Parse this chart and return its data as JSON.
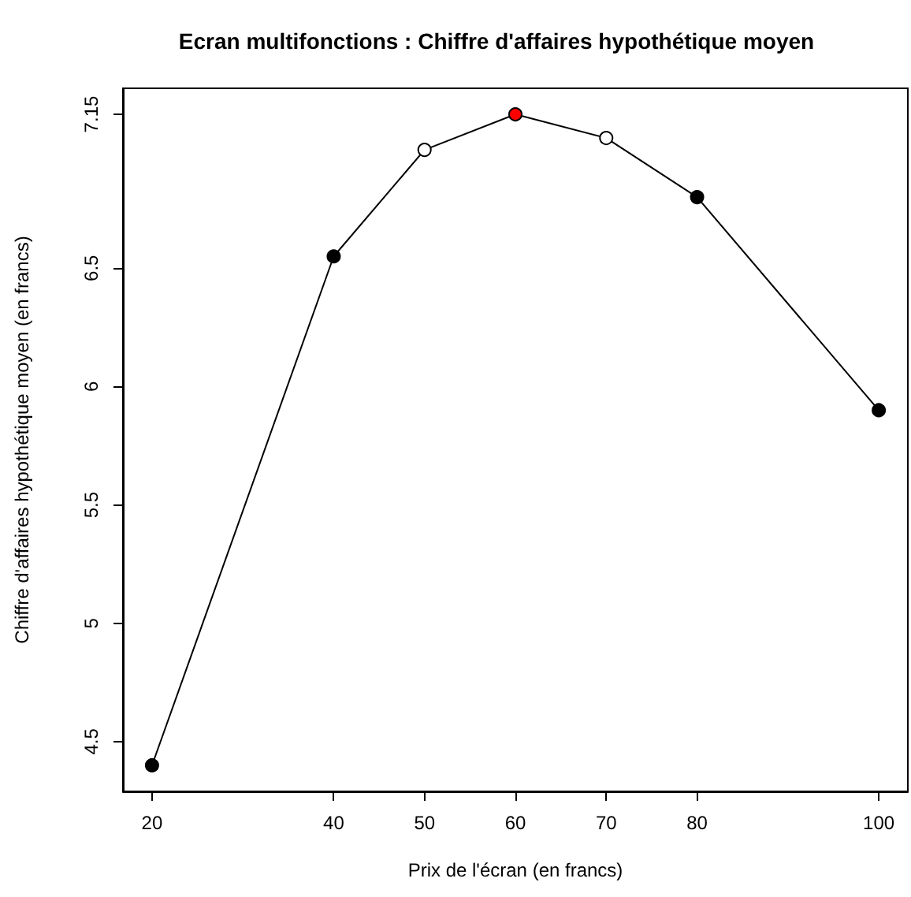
{
  "chart_data": {
    "type": "line",
    "title": "Ecran multifonctions : Chiffre d'affaires hypothétique moyen",
    "xlabel": "Prix de l'écran (en francs)",
    "ylabel": "Chiffre d'affaires hypothétique moyen (en francs)",
    "x": [
      20,
      40,
      50,
      60,
      70,
      80,
      100
    ],
    "series": [
      {
        "color": "#000000",
        "colors": [
          "#000000",
          "#000000",
          "#ffffff",
          "#ff0000",
          "#ffffff",
          "#000000",
          "#000000"
        ],
        "values": [
          4.4,
          6.55,
          7.0,
          7.15,
          7.05,
          6.8,
          5.9
        ]
      }
    ],
    "xlim": [
      16.8,
      103.2
    ],
    "xticks": [
      20,
      40,
      50,
      60,
      70,
      80,
      100
    ],
    "ylim": [
      4.29,
      7.26
    ],
    "yticks": [
      4.5,
      5,
      5.5,
      6,
      6.5,
      7.15
    ],
    "grid": false,
    "marker": "circle",
    "line_style": "solid"
  }
}
